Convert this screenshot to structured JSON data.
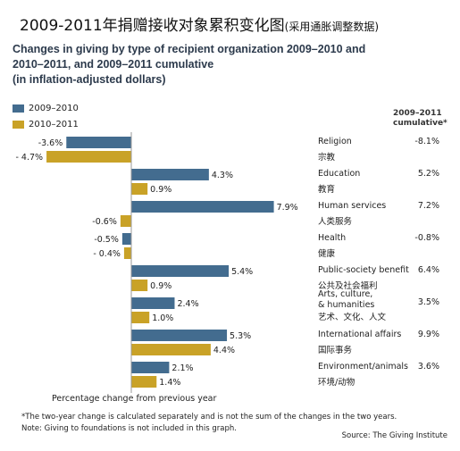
{
  "header": {
    "cn_title": "2009-2011年捐赠接收对象累积变化图",
    "cn_subtitle": "(采用通胀调整数据)",
    "en_title_line1": "Changes in giving by type of recipient organization 2009–2010 and",
    "en_title_line2": "2010–2011, and 2009–2011 cumulative",
    "en_title_line3": "(in inflation-adjusted dollars)"
  },
  "cumulative_header_line1": "2009–2011",
  "cumulative_header_line2": "cumulative*",
  "footnote_line1": "*The two-year change is calculated separately and is not the sum of the changes in the two years.",
  "footnote_line2": "Note: Giving to foundations is not included in this graph.",
  "source": "Source: The Giving Institute",
  "colors": {
    "series_2009_2010": "#436c8f",
    "series_2010_2011": "#c9a227",
    "axis": "#999999"
  },
  "chart_data": {
    "type": "bar",
    "orientation": "horizontal",
    "xlabel": "Percentage change from previous year",
    "x_unit": "%",
    "legend_placement": "top-left",
    "categories": [
      {
        "en": "Religion",
        "cn": "宗教"
      },
      {
        "en": "Education",
        "cn": "教育"
      },
      {
        "en": "Human services",
        "cn": "人类服务"
      },
      {
        "en": "Health",
        "cn": "健康"
      },
      {
        "en": "Public-society benefit",
        "cn": "公共及社会福利"
      },
      {
        "en": "Arts, culture,\n& humanities",
        "cn": "艺术、文化、人文"
      },
      {
        "en": "International affairs",
        "cn": "国际事务"
      },
      {
        "en": "Environment/animals",
        "cn": "环境/动物"
      }
    ],
    "series": [
      {
        "name": "2009–2010",
        "values": [
          -3.6,
          4.3,
          7.9,
          -0.5,
          5.4,
          2.4,
          5.3,
          2.1
        ],
        "labels": [
          "-3.6%",
          "4.3%",
          "7.9%",
          "-0.5%",
          "5.4%",
          "2.4%",
          "5.3%",
          "2.1%"
        ]
      },
      {
        "name": "2010–2011",
        "values": [
          -4.7,
          0.9,
          -0.6,
          -0.4,
          0.9,
          1.0,
          4.4,
          1.4
        ],
        "labels": [
          "- 4.7%",
          "0.9%",
          "-0.6%",
          "- 0.4%",
          "0.9%",
          "1.0%",
          "4.4%",
          "1.4%"
        ]
      }
    ],
    "cumulative": {
      "values": [
        -8.1,
        5.2,
        7.2,
        -0.8,
        6.4,
        3.5,
        9.9,
        3.6
      ],
      "labels": [
        "-8.1%",
        "5.2%",
        "7.2%",
        "-0.8%",
        "6.4%",
        "3.5%",
        "9.9%",
        "3.6%"
      ]
    }
  }
}
